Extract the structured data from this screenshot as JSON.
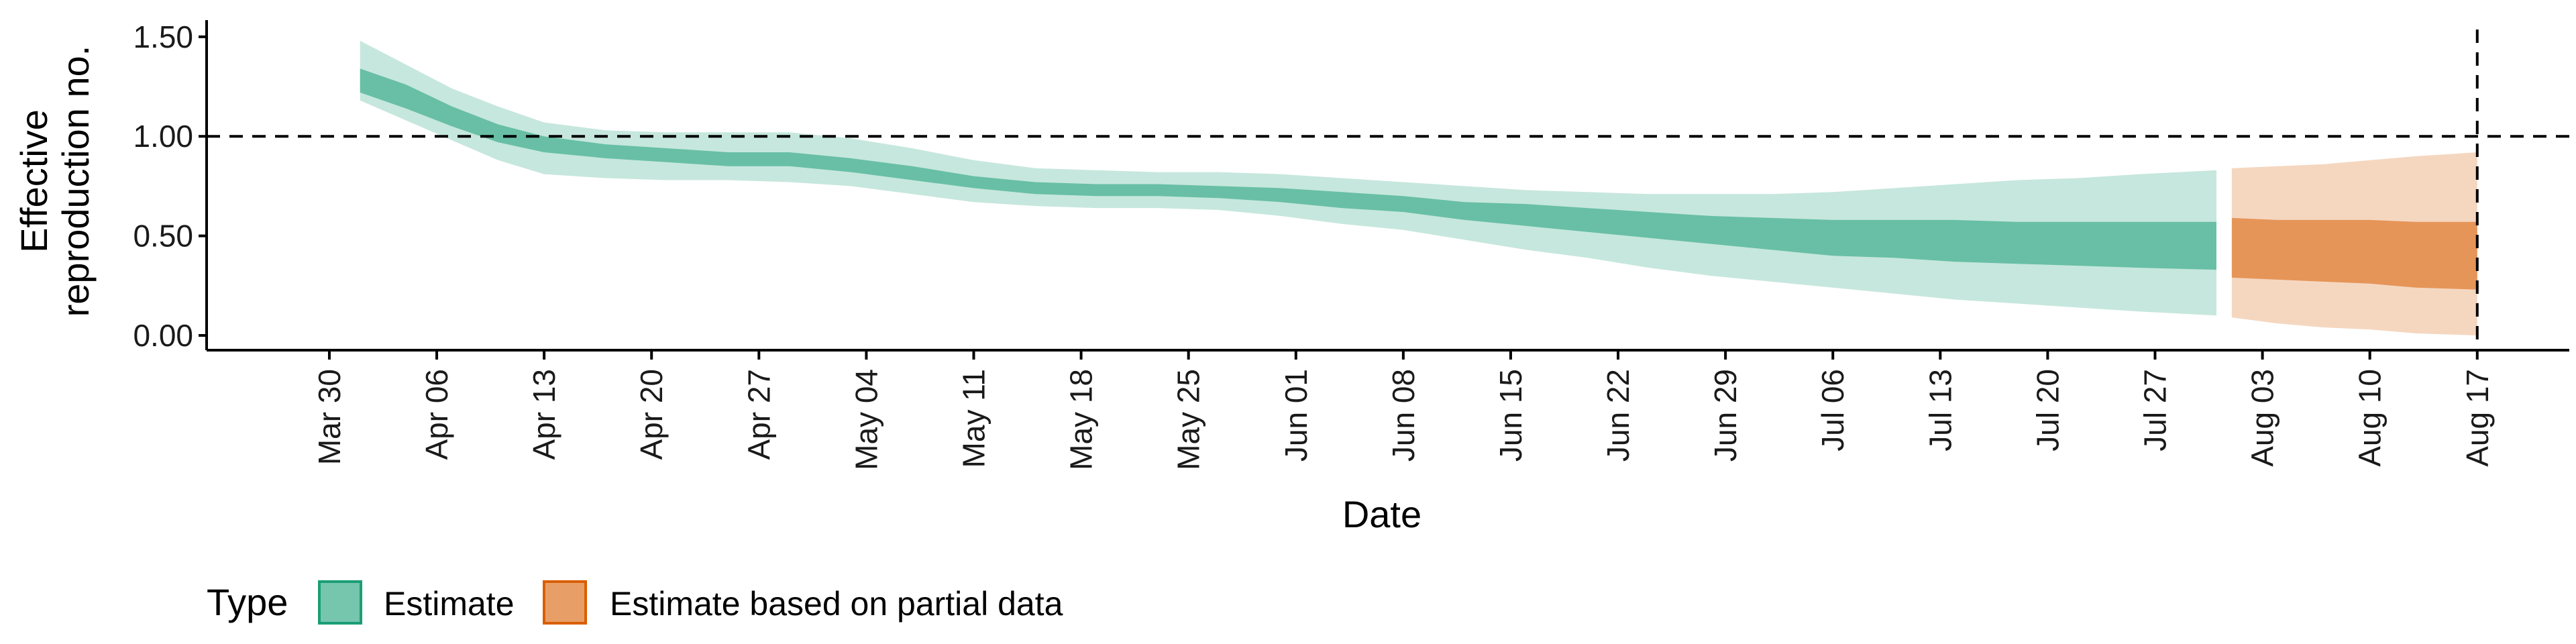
{
  "chart_data": {
    "type": "area",
    "xlabel": "Date",
    "ylabel_lines": [
      "Effective",
      "reproduction no."
    ],
    "ylim": [
      0.0,
      1.55
    ],
    "yticks": [
      0.0,
      0.5,
      1.0,
      1.5
    ],
    "ytick_labels": [
      "0.00",
      "0.50",
      "1.00",
      "1.50"
    ],
    "xlim": [
      "2020-03-22",
      "2020-08-23"
    ],
    "xticks": [
      "2020-03-30",
      "2020-04-06",
      "2020-04-13",
      "2020-04-20",
      "2020-04-27",
      "2020-05-04",
      "2020-05-11",
      "2020-05-18",
      "2020-05-25",
      "2020-06-01",
      "2020-06-08",
      "2020-06-15",
      "2020-06-22",
      "2020-06-29",
      "2020-07-06",
      "2020-07-13",
      "2020-07-20",
      "2020-07-27",
      "2020-08-03",
      "2020-08-10",
      "2020-08-17"
    ],
    "xtick_labels": [
      "Mar 30",
      "Apr 06",
      "Apr 13",
      "Apr 20",
      "Apr 27",
      "May 04",
      "May 11",
      "May 18",
      "May 25",
      "Jun 01",
      "Jun 08",
      "Jun 15",
      "Jun 22",
      "Jun 29",
      "Jul 06",
      "Jul 13",
      "Jul 20",
      "Jul 27",
      "Aug 03",
      "Aug 10",
      "Aug 17"
    ],
    "hline": 1.0,
    "vline": "2020-08-17",
    "legend": {
      "title": "Type",
      "position": "bottom-left",
      "items": [
        {
          "label": "Estimate",
          "color": "#1b9e77"
        },
        {
          "label": "Estimate based on partial data",
          "color": "#d95f02"
        }
      ]
    },
    "series": [
      {
        "name": "Estimate",
        "color": "#1b9e77",
        "x": [
          "2020-04-01",
          "2020-04-04",
          "2020-04-07",
          "2020-04-10",
          "2020-04-13",
          "2020-04-17",
          "2020-04-21",
          "2020-04-25",
          "2020-04-29",
          "2020-05-03",
          "2020-05-07",
          "2020-05-11",
          "2020-05-15",
          "2020-05-19",
          "2020-05-23",
          "2020-05-27",
          "2020-05-31",
          "2020-06-04",
          "2020-06-08",
          "2020-06-12",
          "2020-06-16",
          "2020-06-20",
          "2020-06-24",
          "2020-06-28",
          "2020-07-02",
          "2020-07-06",
          "2020-07-10",
          "2020-07-14",
          "2020-07-18",
          "2020-07-22",
          "2020-07-26",
          "2020-07-31"
        ],
        "median": [
          1.28,
          1.2,
          1.1,
          1.02,
          0.96,
          0.92,
          0.9,
          0.88,
          0.88,
          0.85,
          0.81,
          0.77,
          0.74,
          0.73,
          0.73,
          0.72,
          0.71,
          0.68,
          0.66,
          0.63,
          0.61,
          0.58,
          0.56,
          0.54,
          0.52,
          0.5,
          0.49,
          0.47,
          0.46,
          0.45,
          0.45,
          0.44
        ],
        "lower50": [
          1.22,
          1.14,
          1.05,
          0.97,
          0.92,
          0.89,
          0.87,
          0.85,
          0.85,
          0.82,
          0.78,
          0.74,
          0.71,
          0.7,
          0.7,
          0.69,
          0.67,
          0.64,
          0.62,
          0.58,
          0.55,
          0.52,
          0.49,
          0.46,
          0.43,
          0.4,
          0.39,
          0.37,
          0.36,
          0.35,
          0.34,
          0.33
        ],
        "upper50": [
          1.34,
          1.26,
          1.15,
          1.06,
          1.0,
          0.96,
          0.94,
          0.92,
          0.92,
          0.89,
          0.85,
          0.8,
          0.77,
          0.76,
          0.76,
          0.75,
          0.74,
          0.72,
          0.7,
          0.67,
          0.66,
          0.64,
          0.62,
          0.6,
          0.59,
          0.58,
          0.58,
          0.58,
          0.57,
          0.57,
          0.57,
          0.57
        ],
        "lower90": [
          1.18,
          1.08,
          0.98,
          0.88,
          0.81,
          0.79,
          0.78,
          0.78,
          0.77,
          0.75,
          0.71,
          0.67,
          0.65,
          0.64,
          0.64,
          0.63,
          0.6,
          0.56,
          0.53,
          0.48,
          0.43,
          0.39,
          0.34,
          0.3,
          0.27,
          0.24,
          0.21,
          0.18,
          0.16,
          0.14,
          0.12,
          0.1
        ],
        "upper90": [
          1.48,
          1.36,
          1.24,
          1.15,
          1.07,
          1.03,
          1.02,
          1.02,
          1.02,
          0.99,
          0.94,
          0.88,
          0.84,
          0.83,
          0.82,
          0.82,
          0.81,
          0.79,
          0.77,
          0.75,
          0.73,
          0.72,
          0.71,
          0.71,
          0.71,
          0.72,
          0.74,
          0.76,
          0.78,
          0.79,
          0.81,
          0.83
        ]
      },
      {
        "name": "Estimate based on partial data",
        "color": "#d95f02",
        "x": [
          "2020-08-01",
          "2020-08-04",
          "2020-08-07",
          "2020-08-10",
          "2020-08-13",
          "2020-08-17"
        ],
        "median": [
          0.42,
          0.41,
          0.41,
          0.41,
          0.4,
          0.4
        ],
        "lower50": [
          0.29,
          0.28,
          0.27,
          0.26,
          0.24,
          0.23
        ],
        "upper50": [
          0.59,
          0.58,
          0.58,
          0.58,
          0.57,
          0.57
        ],
        "lower90": [
          0.09,
          0.06,
          0.04,
          0.03,
          0.01,
          0.0
        ],
        "upper90": [
          0.84,
          0.85,
          0.86,
          0.88,
          0.9,
          0.92
        ]
      }
    ]
  }
}
